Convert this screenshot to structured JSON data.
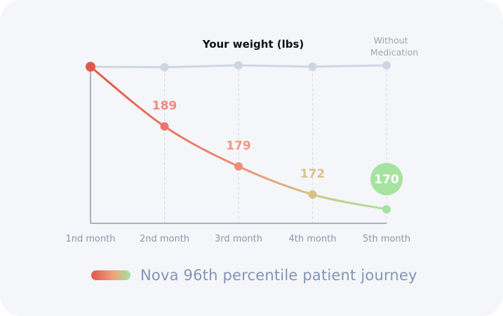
{
  "chart_data": {
    "type": "line",
    "title": "Your weight (lbs)",
    "xlabel": "",
    "ylabel": "",
    "categories": [
      "1nd month",
      "2nd month",
      "3rd month",
      "4th month",
      "5th month"
    ],
    "series": [
      {
        "name": "Without Medication",
        "label_lines": [
          "Without",
          "Medication"
        ],
        "values": [
          203,
          202.8,
          203.5,
          203,
          203.5
        ],
        "color": "#cfd6e3"
      },
      {
        "name": "Nova 96th percentile patient journey",
        "values": [
          203,
          189,
          179,
          172,
          170
        ],
        "data_labels": [
          "",
          "189",
          "179",
          "172",
          "170"
        ],
        "point_colors": [
          "#e2574c",
          "#e8786b",
          "#ec8e76",
          "#d7c285",
          "#a6e3a1"
        ],
        "label_colors": [
          "#e2574c",
          "#ee8a7c",
          "#ef9a80",
          "#d8c28a",
          "#ffffff"
        ],
        "highlight_last": true,
        "highlight_color": "#a6e3a1"
      }
    ],
    "ylim": [
      168,
      205
    ],
    "grid": "vertical-dashed",
    "legend": "bottom"
  },
  "legend": {
    "label": "Nova 96th percentile patient journey",
    "gradient": [
      "#e2574c",
      "#f0a07a",
      "#a6e3a1"
    ]
  },
  "colors": {
    "background": "#f5f6f9",
    "axis": "#8e9bb3",
    "title": "#111111",
    "tick_label": "#8b95ab",
    "muted_label": "#a3a6ad"
  }
}
